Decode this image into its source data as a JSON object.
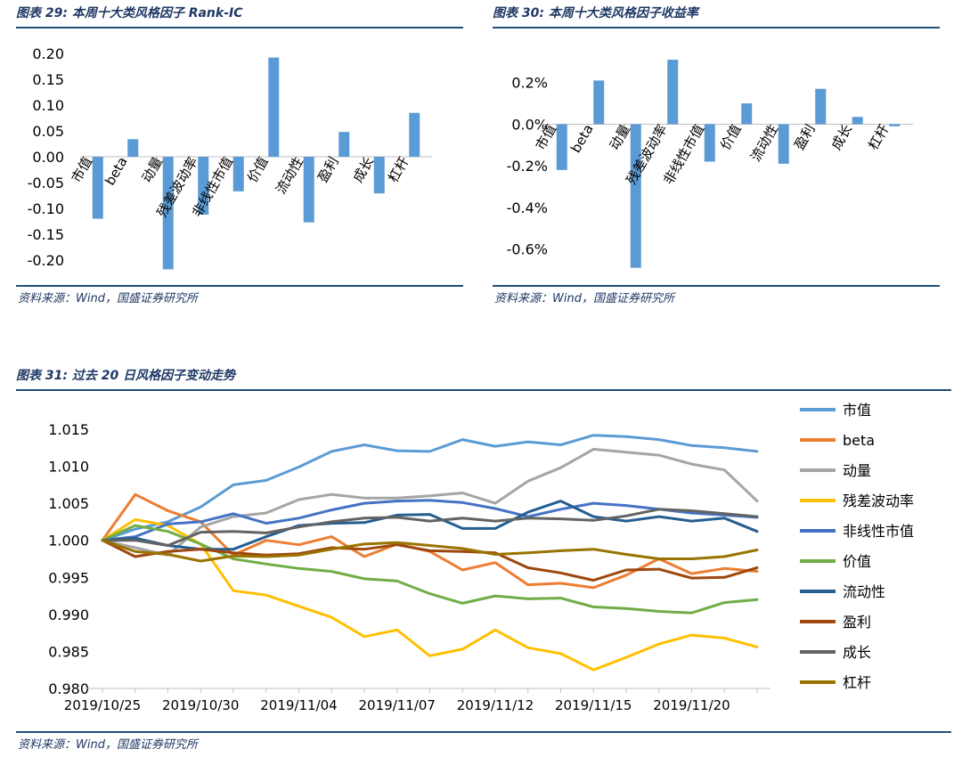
{
  "panels": [
    {
      "title": "图表 29:  本周十大类风格因子 Rank-IC",
      "source": "资料来源：Wind，国盛证券研究所"
    },
    {
      "title": "图表 30:  本周十大类风格因子收益率",
      "source": "资料来源：Wind，国盛证券研究所"
    },
    {
      "title": "图表 31:  过去 20 日风格因子变动走势",
      "source": "资料来源：Wind，国盛证券研究所"
    }
  ],
  "colors": {
    "bar": "#5b9bd5",
    "title": "#1f3864",
    "rule": "#1f4e79",
    "series": [
      "#5b9bd5",
      "#ed7d31",
      "#a5a5a5",
      "#ffc000",
      "#4472c4",
      "#70ad47",
      "#255e91",
      "#9e480e",
      "#636363",
      "#997300"
    ]
  },
  "chart_data": [
    {
      "type": "bar",
      "categories": [
        "市值",
        "beta",
        "动量",
        "残差波动率",
        "非线性市值",
        "价值",
        "流动性",
        "盈利",
        "成长",
        "杠杆"
      ],
      "values": [
        -0.12,
        0.034,
        -0.218,
        -0.112,
        -0.067,
        0.192,
        -0.127,
        0.048,
        -0.071,
        0.085
      ],
      "ylim": [
        -0.25,
        0.25
      ],
      "yticks": [
        "0.20",
        "0.15",
        "0.10",
        "0.05",
        "0.00",
        "-0.05",
        "-0.10",
        "-0.15",
        "-0.20"
      ],
      "ytick_values": [
        0.2,
        0.15,
        0.1,
        0.05,
        0,
        -0.05,
        -0.1,
        -0.15,
        -0.2
      ]
    },
    {
      "type": "bar",
      "categories": [
        "市值",
        "beta",
        "动量",
        "残差波动率",
        "非线性市值",
        "价值",
        "流动性",
        "盈利",
        "成长",
        "杠杆"
      ],
      "values": [
        -0.22,
        0.21,
        -0.69,
        0.31,
        -0.18,
        0.1,
        -0.19,
        0.17,
        0.035,
        -0.01
      ],
      "ylim": [
        -0.7,
        0.4
      ],
      "yticks": [
        "0.2%",
        "0.0%",
        "-0.2%",
        "-0.4%",
        "-0.6%"
      ],
      "ytick_values": [
        0.2,
        0,
        -0.2,
        -0.4,
        -0.6
      ]
    },
    {
      "type": "line",
      "ylim": [
        0.98,
        1.015
      ],
      "yticks": [
        "1.015",
        "1.010",
        "1.005",
        "1.000",
        "0.995",
        "0.990",
        "0.985",
        "0.980"
      ],
      "ytick_values": [
        1.015,
        1.01,
        1.005,
        1.0,
        0.995,
        0.99,
        0.985,
        0.98
      ],
      "x_ticks": [
        "2019/10/25",
        "2019/10/30",
        "2019/11/04",
        "2019/11/07",
        "2019/11/12",
        "2019/11/15",
        "2019/11/20"
      ],
      "x_tick_index": [
        0,
        3,
        6,
        9,
        12,
        15,
        18
      ],
      "x": [
        "2019/10/25",
        "2019/10/28",
        "2019/10/29",
        "2019/10/30",
        "2019/10/31",
        "2019/11/01",
        "2019/11/04",
        "2019/11/05",
        "2019/11/06",
        "2019/11/07",
        "2019/11/08",
        "2019/11/11",
        "2019/11/12",
        "2019/11/13",
        "2019/11/14",
        "2019/11/15",
        "2019/11/18",
        "2019/11/19",
        "2019/11/20",
        "2019/11/21",
        "2019/11/22"
      ],
      "series": [
        {
          "name": "市值",
          "values": [
            1.0,
            1.0015,
            1.0025,
            1.0045,
            1.0075,
            1.0081,
            1.0099,
            1.012,
            1.0129,
            1.0121,
            1.012,
            1.0136,
            1.0127,
            1.0133,
            1.0129,
            1.0142,
            1.014,
            1.0136,
            1.0128,
            1.0125,
            1.012
          ]
        },
        {
          "name": "beta",
          "values": [
            1.0,
            1.0062,
            1.004,
            1.0025,
            0.998,
            1.0,
            0.9994,
            1.0005,
            0.9978,
            0.9995,
            0.9985,
            0.996,
            0.997,
            0.994,
            0.9942,
            0.9936,
            0.9953,
            0.9975,
            0.9955,
            0.9962,
            0.9958
          ]
        },
        {
          "name": "动量",
          "values": [
            1.0,
            0.999,
            0.998,
            1.0018,
            1.0032,
            1.0037,
            1.0055,
            1.0062,
            1.0057,
            1.0057,
            1.006,
            1.0064,
            1.005,
            1.008,
            1.0098,
            1.0123,
            1.0119,
            1.0115,
            1.0103,
            1.0095,
            1.0053
          ]
        },
        {
          "name": "残差波动率",
          "values": [
            1.0,
            1.0028,
            1.002,
            0.9995,
            0.9932,
            0.9926,
            0.9911,
            0.9896,
            0.987,
            0.9879,
            0.9844,
            0.9853,
            0.9879,
            0.9855,
            0.9847,
            0.9825,
            0.9842,
            0.986,
            0.9872,
            0.9868,
            0.9856
          ]
        },
        {
          "name": "非线性市值",
          "values": [
            1.0,
            1.0005,
            1.0022,
            1.0025,
            1.0036,
            1.0023,
            1.003,
            1.0041,
            1.005,
            1.0053,
            1.0054,
            1.0051,
            1.0043,
            1.0032,
            1.0042,
            1.005,
            1.0047,
            1.0042,
            1.0037,
            1.0034,
            1.0031
          ]
        },
        {
          "name": "价值",
          "values": [
            1.0,
            1.002,
            1.0012,
            0.9995,
            0.9975,
            0.9968,
            0.9962,
            0.9958,
            0.9948,
            0.9945,
            0.9928,
            0.9915,
            0.9925,
            0.9921,
            0.9922,
            0.991,
            0.9908,
            0.9904,
            0.9902,
            0.9916,
            0.992
          ]
        },
        {
          "name": "流动性",
          "values": [
            1.0,
            1.0003,
            0.9993,
            0.9988,
            0.9988,
            1.0005,
            1.002,
            1.0023,
            1.0024,
            1.0034,
            1.0035,
            1.0016,
            1.0016,
            1.0038,
            1.0053,
            1.0032,
            1.0026,
            1.0032,
            1.0026,
            1.003,
            1.0012
          ]
        },
        {
          "name": "盈利",
          "values": [
            1.0,
            0.9978,
            0.9985,
            0.9988,
            0.9983,
            0.998,
            0.9982,
            0.999,
            0.9988,
            0.9994,
            0.9986,
            0.9985,
            0.9983,
            0.9963,
            0.9956,
            0.9946,
            0.996,
            0.9961,
            0.9949,
            0.995,
            0.9963
          ]
        },
        {
          "name": "成长",
          "values": [
            1.0,
            1.0,
            0.9993,
            1.0011,
            1.0012,
            1.001,
            1.0018,
            1.0025,
            1.003,
            1.0031,
            1.0026,
            1.003,
            1.0026,
            1.003,
            1.0029,
            1.0027,
            1.0033,
            1.0042,
            1.004,
            1.0036,
            1.0032
          ]
        },
        {
          "name": "杠杆",
          "values": [
            1.0,
            0.9985,
            0.9981,
            0.9972,
            0.9979,
            0.9978,
            0.998,
            0.9988,
            0.9995,
            0.9997,
            0.9993,
            0.9989,
            0.9981,
            0.9983,
            0.9986,
            0.9988,
            0.9981,
            0.9975,
            0.9975,
            0.9978,
            0.9987
          ]
        }
      ]
    }
  ]
}
